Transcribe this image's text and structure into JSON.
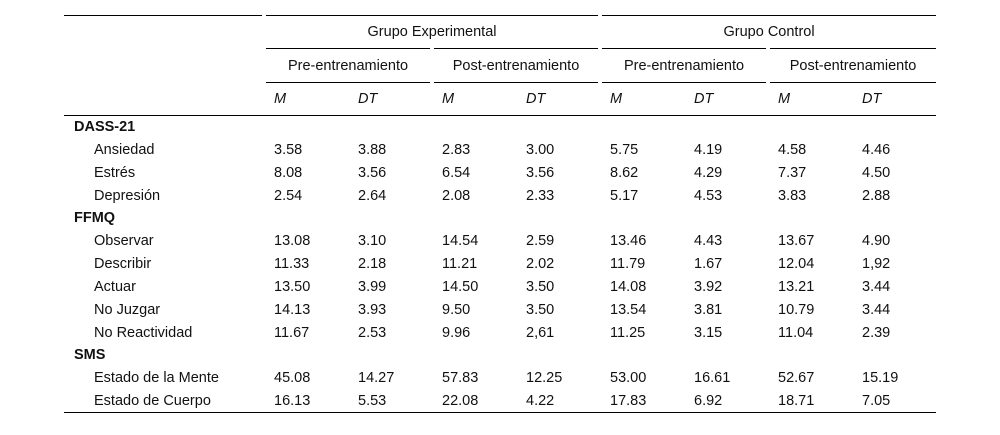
{
  "groups": [
    "Grupo Experimental",
    "Grupo Control"
  ],
  "phases": [
    "Pre-entrenamiento",
    "Post-entrenamiento",
    "Pre-entrenamiento",
    "Post-entrenamiento"
  ],
  "stats": [
    "M",
    "DT",
    "M",
    "DT",
    "M",
    "DT",
    "M",
    "DT"
  ],
  "sections": [
    {
      "name": "DASS-21",
      "rows": [
        {
          "label": "Ansiedad",
          "values": [
            "3.58",
            "3.88",
            "2.83",
            "3.00",
            "5.75",
            "4.19",
            "4.58",
            "4.46"
          ]
        },
        {
          "label": "Estrés",
          "values": [
            "8.08",
            "3.56",
            "6.54",
            "3.56",
            "8.62",
            "4.29",
            "7.37",
            "4.50"
          ]
        },
        {
          "label": "Depresión",
          "values": [
            "2.54",
            "2.64",
            "2.08",
            "2.33",
            "5.17",
            "4.53",
            "3.83",
            "2.88"
          ]
        }
      ]
    },
    {
      "name": "FFMQ",
      "rows": [
        {
          "label": "Observar",
          "values": [
            "13.08",
            "3.10",
            "14.54",
            "2.59",
            "13.46",
            "4.43",
            "13.67",
            "4.90"
          ]
        },
        {
          "label": "Describir",
          "values": [
            "11.33",
            "2.18",
            "11.21",
            "2.02",
            "11.79",
            "1.67",
            "12.04",
            "1,92"
          ]
        },
        {
          "label": "Actuar",
          "values": [
            "13.50",
            "3.99",
            "14.50",
            "3.50",
            "14.08",
            "3.92",
            "13.21",
            "3.44"
          ]
        },
        {
          "label": "No Juzgar",
          "values": [
            "14.13",
            "3.93",
            "9.50",
            "3.50",
            "13.54",
            "3.81",
            "10.79",
            "3.44"
          ]
        },
        {
          "label": "No Reactividad",
          "values": [
            "11.67",
            "2.53",
            "9.96",
            "2,61",
            "11.25",
            "3.15",
            "11.04",
            "2.39"
          ]
        }
      ]
    },
    {
      "name": "SMS",
      "rows": [
        {
          "label": "Estado de la Mente",
          "values": [
            "45.08",
            "14.27",
            "57.83",
            "12.25",
            "53.00",
            "16.61",
            "52.67",
            "15.19"
          ]
        },
        {
          "label": "Estado de Cuerpo",
          "values": [
            "16.13",
            "5.53",
            "22.08",
            "4.22",
            "17.83",
            "6.92",
            "18.71",
            "7.05"
          ]
        }
      ]
    }
  ]
}
